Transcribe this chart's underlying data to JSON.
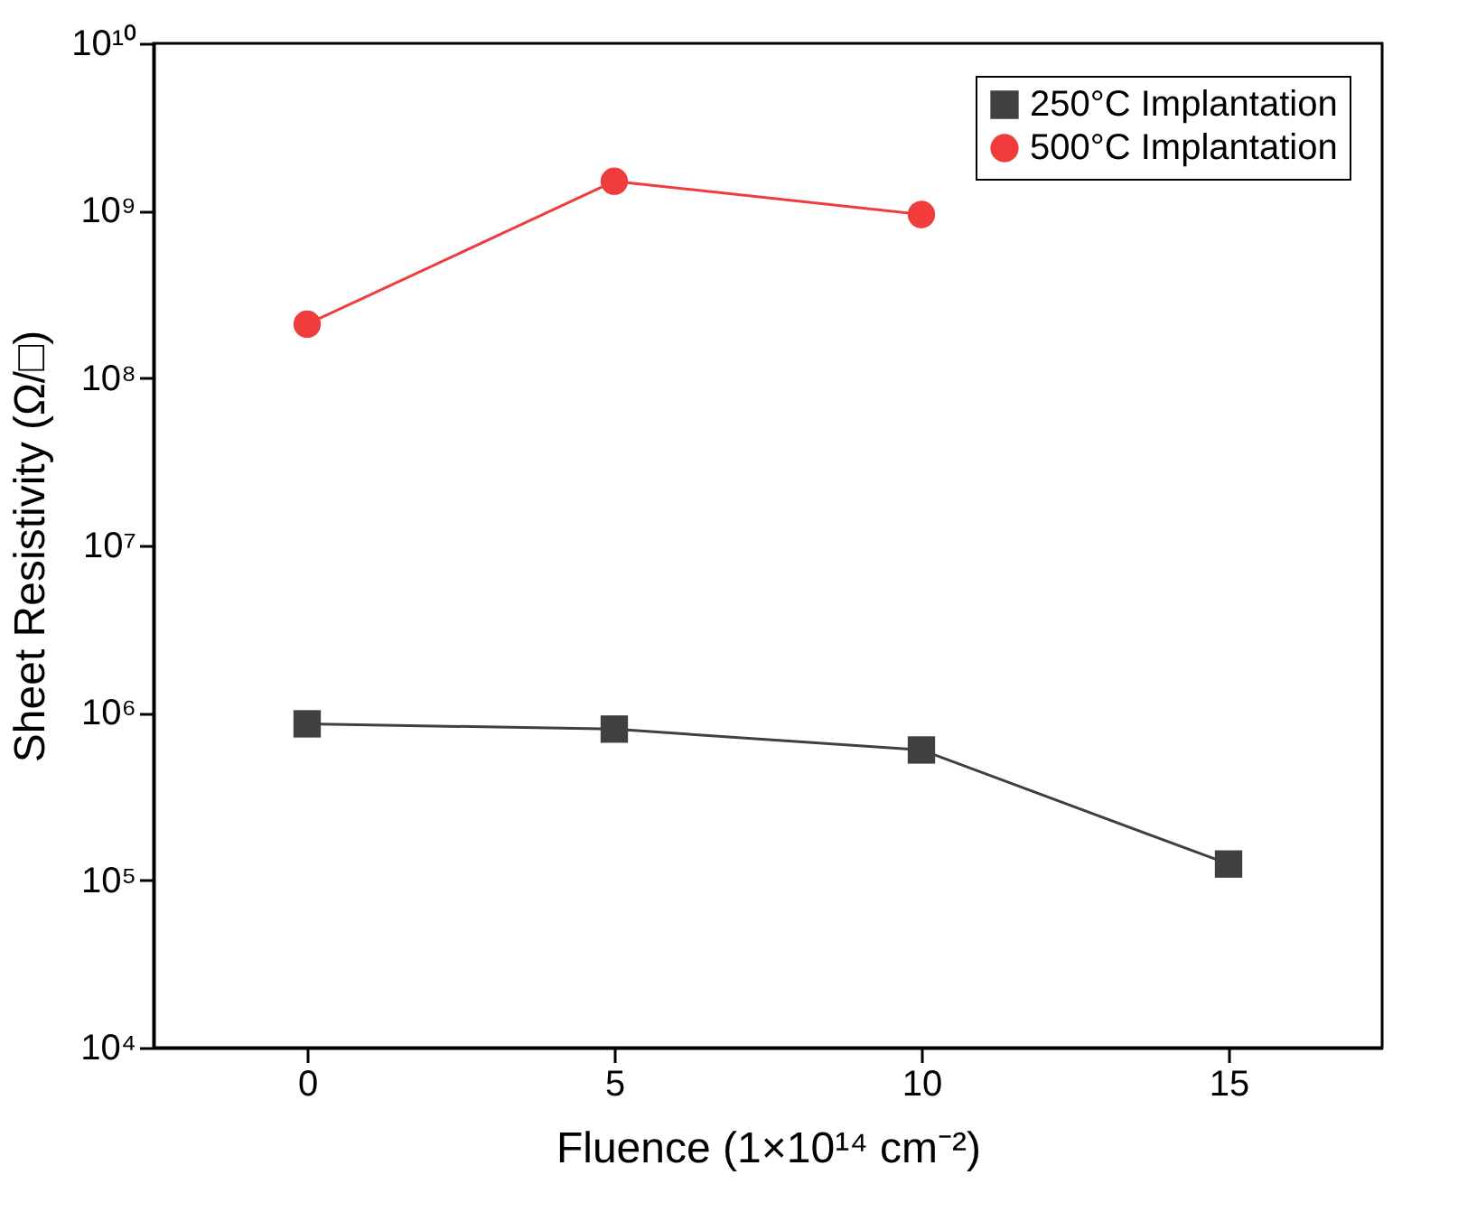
{
  "chart_data": {
    "type": "line",
    "xlabel": "Fluence (1×10¹⁴ cm⁻²)",
    "ylabel": "Sheet Resistivity (Ω/□)",
    "x": [
      0,
      5,
      10,
      15
    ],
    "series": [
      {
        "name": "250°C Implantation",
        "color": "#404040",
        "marker": "square",
        "values": [
          860000,
          800000,
          600000,
          125000
        ]
      },
      {
        "name": "500°C Implantation",
        "color": "#f03c3c",
        "marker": "circle",
        "values": [
          210000000,
          1500000000,
          950000000,
          null
        ]
      }
    ],
    "log": "y",
    "xlim": [
      -2.5,
      17.5
    ],
    "xticks": [
      0,
      5,
      10,
      15
    ],
    "ylim": [
      10000,
      10000000000
    ],
    "yticks": [
      {
        "value": 10000,
        "label": "10⁴"
      },
      {
        "value": 100000,
        "label": "10⁵"
      },
      {
        "value": 1000000,
        "label": "10⁶"
      },
      {
        "value": 10000000,
        "label": "10⁷"
      },
      {
        "value": 100000000,
        "label": "10⁸"
      },
      {
        "value": 1000000000,
        "label": "10⁹"
      },
      {
        "value": 10000000000,
        "label": "10¹⁰"
      }
    ],
    "grid": false,
    "legend": "top right",
    "line_style": "solid"
  }
}
